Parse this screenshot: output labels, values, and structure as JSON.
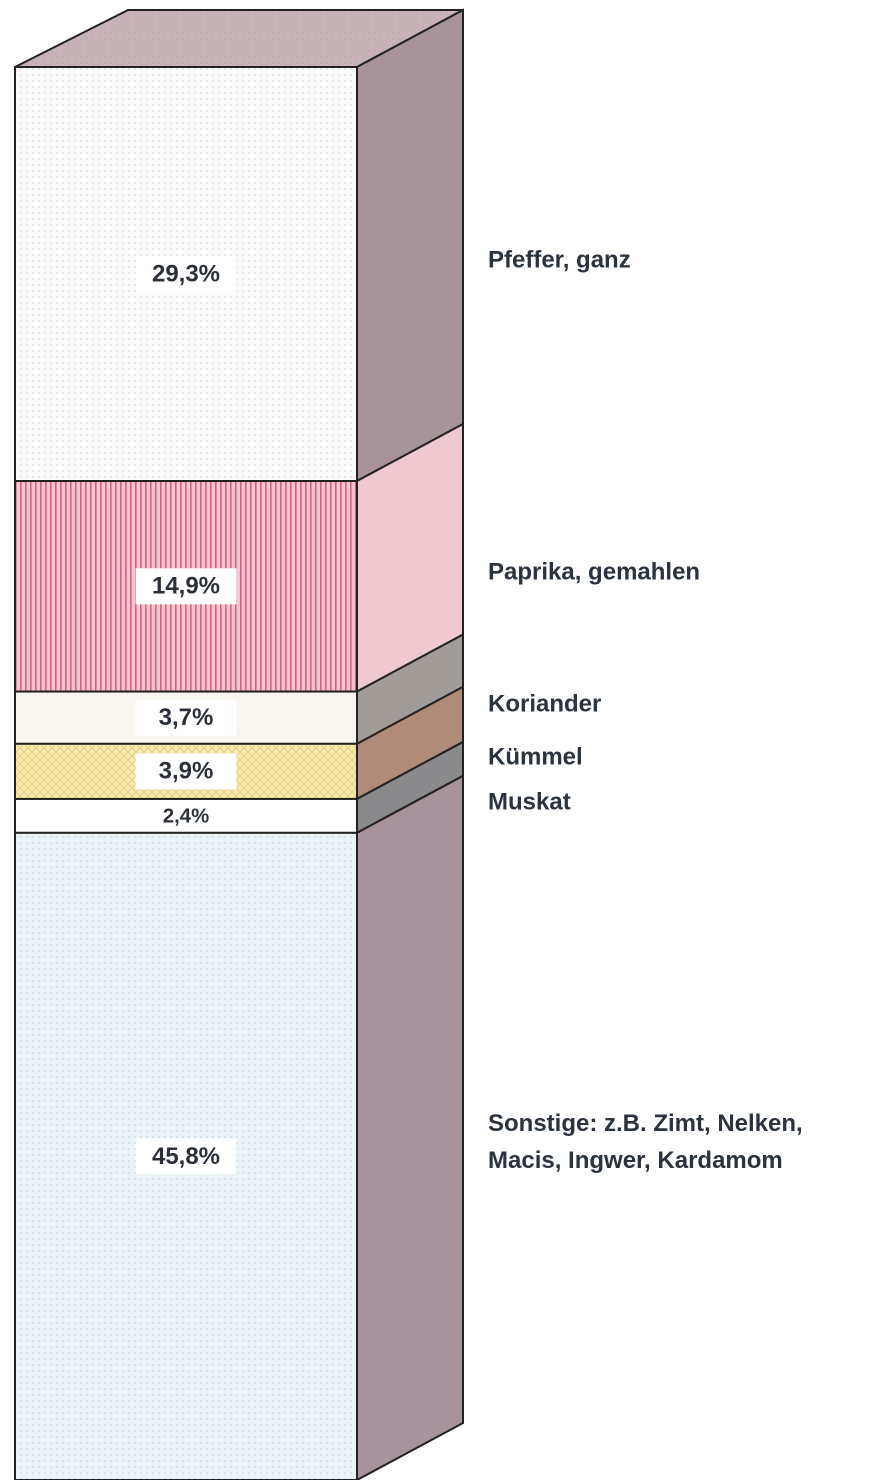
{
  "chart_data": {
    "type": "stacked_bar",
    "ylim": [
      0,
      100
    ],
    "series": [
      {
        "name": "Pfeffer, ganz",
        "color": "#fbfbfb",
        "side_color": "#a8939a",
        "values": [
          29.3
        ],
        "value_labels": [
          "29,3%"
        ]
      },
      {
        "name": "Paprika, gemahlen",
        "color": "#f4c6d2",
        "side_color": "#f0c8d0",
        "values": [
          14.9
        ],
        "value_labels": [
          "14,9%"
        ]
      },
      {
        "name": "Koriander",
        "color": "#f8f6ef",
        "side_color": "#a29c98",
        "values": [
          3.7
        ],
        "value_labels": [
          "3,7%"
        ]
      },
      {
        "name": "Kümmel",
        "color": "#f7ecae",
        "side_color": "#b08c78",
        "values": [
          3.9
        ],
        "value_labels": [
          "3,9%"
        ]
      },
      {
        "name": "Muskat",
        "color": "#ffffff",
        "side_color": "#8a8a8c",
        "values": [
          2.4
        ],
        "value_labels": [
          "2,4%"
        ]
      },
      {
        "name": "Sonstige: z.B. Zimt, Nelken, Macis, Ingwer, Kardamom",
        "color": "#eaf3f8",
        "side_color": "#a6939c",
        "values": [
          45.8
        ],
        "value_labels": [
          "45,8%"
        ]
      }
    ]
  }
}
